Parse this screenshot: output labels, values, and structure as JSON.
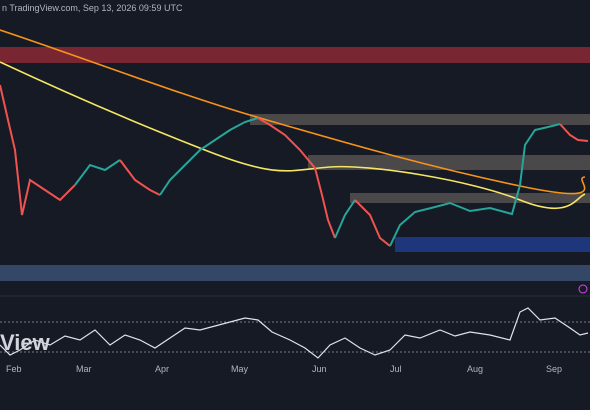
{
  "header": {
    "source": "n TradingView.com, Sep 13, 2026 09:59 UTC"
  },
  "watermark": "View",
  "x_axis": {
    "labels": [
      "Feb",
      "Mar",
      "Apr",
      "May",
      "Jun",
      "Jul",
      "Aug",
      "Sep"
    ]
  }
}
